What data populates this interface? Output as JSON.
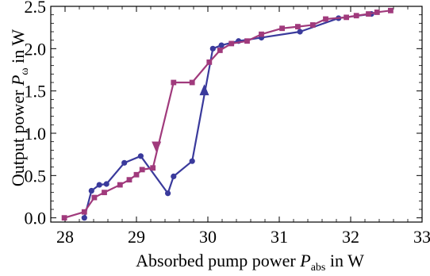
{
  "chart_data": {
    "type": "line",
    "xlabel": {
      "prefix": "Absorbed pump power ",
      "symbol": "P",
      "subscript": "abs",
      "suffix": " in W"
    },
    "ylabel": {
      "prefix": "Output power ",
      "symbol": "P",
      "subscript": "ω",
      "suffix": " in W"
    },
    "xlim": [
      27.8,
      33.0
    ],
    "ylim": [
      -0.05,
      2.5
    ],
    "xticks": [
      28,
      29,
      30,
      31,
      32,
      33
    ],
    "xtick_labels": [
      "28",
      "29",
      "30",
      "31",
      "32",
      "33"
    ],
    "yticks": [
      0.0,
      0.5,
      1.0,
      1.5,
      2.0,
      2.5
    ],
    "ytick_labels": [
      "0.0",
      "0.5",
      "1.0",
      "1.5",
      "2.0",
      "2.5"
    ],
    "grid": false,
    "legend": "none",
    "colors": {
      "series_blue": "#3a3a9c",
      "series_magenta": "#a03a7c",
      "axis": "#000000"
    },
    "series": [
      {
        "marker": "circle",
        "color": "#3a3a9c",
        "x": [
          28.27,
          28.37,
          28.48,
          28.58,
          28.83,
          29.06,
          29.44,
          29.52,
          29.78,
          30.07,
          30.19,
          30.43,
          30.75,
          31.29,
          31.83,
          32.29
        ],
        "y": [
          0.0,
          0.32,
          0.39,
          0.4,
          0.65,
          0.73,
          0.29,
          0.49,
          0.67,
          2.0,
          2.04,
          2.09,
          2.13,
          2.2,
          2.36,
          2.41
        ]
      },
      {
        "marker": "square",
        "color": "#a03a7c",
        "x": [
          27.99,
          28.27,
          28.41,
          28.55,
          28.77,
          28.9,
          29.0,
          29.08,
          29.23,
          29.52,
          29.78,
          30.02,
          30.17,
          30.33,
          30.55,
          30.75,
          31.04,
          31.26,
          31.47,
          31.65,
          31.94,
          32.08,
          32.25,
          32.37,
          32.56
        ],
        "y": [
          0.0,
          0.07,
          0.24,
          0.3,
          0.39,
          0.45,
          0.51,
          0.57,
          0.59,
          1.6,
          1.6,
          1.84,
          1.98,
          2.06,
          2.09,
          2.17,
          2.24,
          2.26,
          2.28,
          2.35,
          2.37,
          2.39,
          2.41,
          2.43,
          2.45
        ]
      }
    ],
    "annotations": [
      {
        "type": "arrow",
        "series": 1,
        "direction": "down",
        "x": 29.28,
        "y_from": 1.05,
        "y_to": 0.77
      },
      {
        "type": "arrow",
        "series": 0,
        "direction": "up",
        "x": 29.95,
        "y_from": 1.3,
        "y_to": 1.58
      }
    ]
  }
}
